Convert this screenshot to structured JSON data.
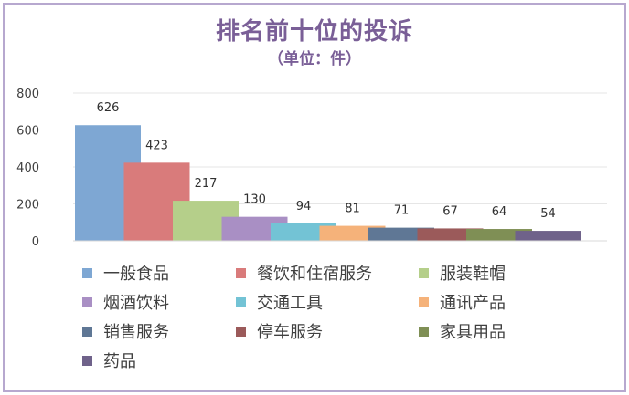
{
  "chart_data": {
    "type": "bar",
    "title": "排名前十位的投诉",
    "subtitle": "（单位：件）",
    "ylim": [
      0,
      800
    ],
    "yticks": [
      0,
      200,
      400,
      600,
      800
    ],
    "grid": true,
    "legend_position": "bottom",
    "series": [
      {
        "name": "一般食品",
        "value": 626,
        "color": "#7ea7d3"
      },
      {
        "name": "餐饮和住宿服务",
        "value": 423,
        "color": "#d97b7b"
      },
      {
        "name": "服装鞋帽",
        "value": 217,
        "color": "#b5cf8a"
      },
      {
        "name": "烟酒饮料",
        "value": 130,
        "color": "#a98fc4"
      },
      {
        "name": "交通工具",
        "value": 94,
        "color": "#73c3d5"
      },
      {
        "name": "通讯产品",
        "value": 81,
        "color": "#f5b27a"
      },
      {
        "name": "销售服务",
        "value": 71,
        "color": "#5f7795"
      },
      {
        "name": "停车服务",
        "value": 67,
        "color": "#9b5a5a"
      },
      {
        "name": "家具用品",
        "value": 64,
        "color": "#7f8f55"
      },
      {
        "name": "药品",
        "value": 54,
        "color": "#6f628a"
      }
    ]
  }
}
